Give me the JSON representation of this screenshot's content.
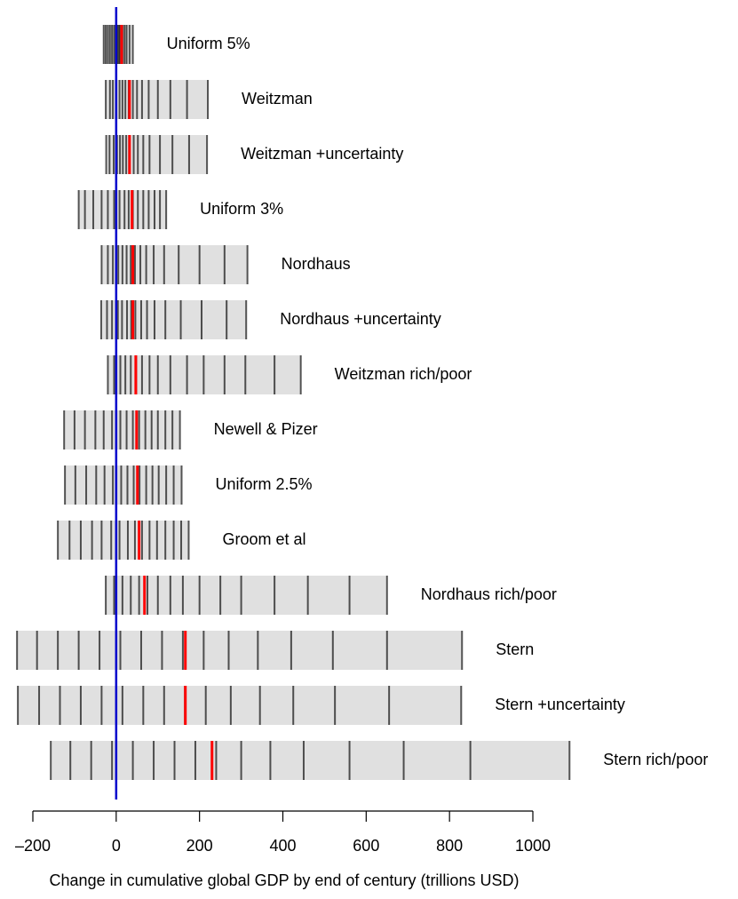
{
  "chart_data": {
    "type": "strip",
    "xlabel": "Change in cumulative global GDP by end of century (trillions USD)",
    "xlim": [
      -200,
      1000
    ],
    "xticks": [
      {
        "value": -200,
        "label": "–200"
      },
      0,
      200,
      400,
      600,
      800,
      1000
    ],
    "color": "#000000",
    "median_color": "#ff0000",
    "refline": {
      "value": 0,
      "color": "#0000cc"
    },
    "series": [
      {
        "name": "Uniform 5%",
        "median": 13,
        "values": [
          -30,
          -25,
          -20,
          -15,
          -10,
          -5,
          0,
          3,
          6,
          9,
          12,
          15,
          20,
          25,
          32,
          40
        ]
      },
      {
        "name": "Weitzman",
        "median": 32,
        "values": [
          -25,
          -15,
          -8,
          0,
          8,
          15,
          22,
          30,
          40,
          50,
          62,
          78,
          100,
          130,
          170,
          220
        ]
      },
      {
        "name": "Weitzman +uncertainty",
        "median": 32,
        "values": [
          -24,
          -16,
          -6,
          2,
          9,
          16,
          24,
          31,
          42,
          52,
          65,
          80,
          105,
          135,
          175,
          218
        ]
      },
      {
        "name": "Uniform 3%",
        "median": 38,
        "values": [
          -90,
          -75,
          -55,
          -35,
          -20,
          -5,
          8,
          20,
          30,
          40,
          52,
          65,
          78,
          92,
          105,
          120
        ]
      },
      {
        "name": "Nordhaus",
        "median": 40,
        "values": [
          -35,
          -20,
          -8,
          5,
          15,
          25,
          35,
          45,
          58,
          72,
          90,
          115,
          150,
          200,
          260,
          315
        ]
      },
      {
        "name": "Nordhaus +uncertainty",
        "median": 40,
        "values": [
          -36,
          -22,
          -10,
          4,
          14,
          26,
          36,
          46,
          60,
          74,
          92,
          118,
          155,
          205,
          265,
          312
        ]
      },
      {
        "name": "Weitzman rich/poor",
        "median": 47,
        "values": [
          -20,
          -5,
          10,
          22,
          35,
          48,
          62,
          80,
          100,
          130,
          170,
          210,
          260,
          310,
          380,
          443
        ]
      },
      {
        "name": "Newell & Pizer",
        "median": 49,
        "values": [
          -125,
          -100,
          -75,
          -50,
          -30,
          -10,
          10,
          25,
          40,
          55,
          70,
          85,
          100,
          118,
          135,
          153
        ]
      },
      {
        "name": "Uniform 2.5%",
        "median": 51,
        "values": [
          -123,
          -98,
          -72,
          -48,
          -28,
          -8,
          12,
          27,
          42,
          56,
          72,
          87,
          102,
          120,
          138,
          157
        ]
      },
      {
        "name": "Groom et al",
        "median": 55,
        "values": [
          -140,
          -112,
          -85,
          -58,
          -35,
          -12,
          8,
          28,
          45,
          62,
          80,
          98,
          118,
          138,
          156,
          174
        ]
      },
      {
        "name": "Nordhaus rich/poor",
        "median": 68,
        "values": [
          -25,
          -5,
          15,
          35,
          55,
          75,
          100,
          130,
          160,
          200,
          250,
          300,
          380,
          460,
          560,
          650
        ]
      },
      {
        "name": "Stern",
        "median": 166,
        "values": [
          -238,
          -190,
          -140,
          -90,
          -40,
          10,
          60,
          110,
          160,
          210,
          270,
          340,
          420,
          520,
          650,
          830
        ]
      },
      {
        "name": "Stern +uncertainty",
        "median": 166,
        "values": [
          -236,
          -185,
          -135,
          -85,
          -35,
          15,
          65,
          115,
          165,
          215,
          275,
          345,
          425,
          525,
          655,
          828
        ]
      },
      {
        "name": "Stern rich/poor",
        "median": 230,
        "values": [
          -157,
          -110,
          -60,
          -10,
          40,
          90,
          140,
          190,
          240,
          300,
          370,
          450,
          560,
          690,
          850,
          1088
        ]
      }
    ]
  }
}
